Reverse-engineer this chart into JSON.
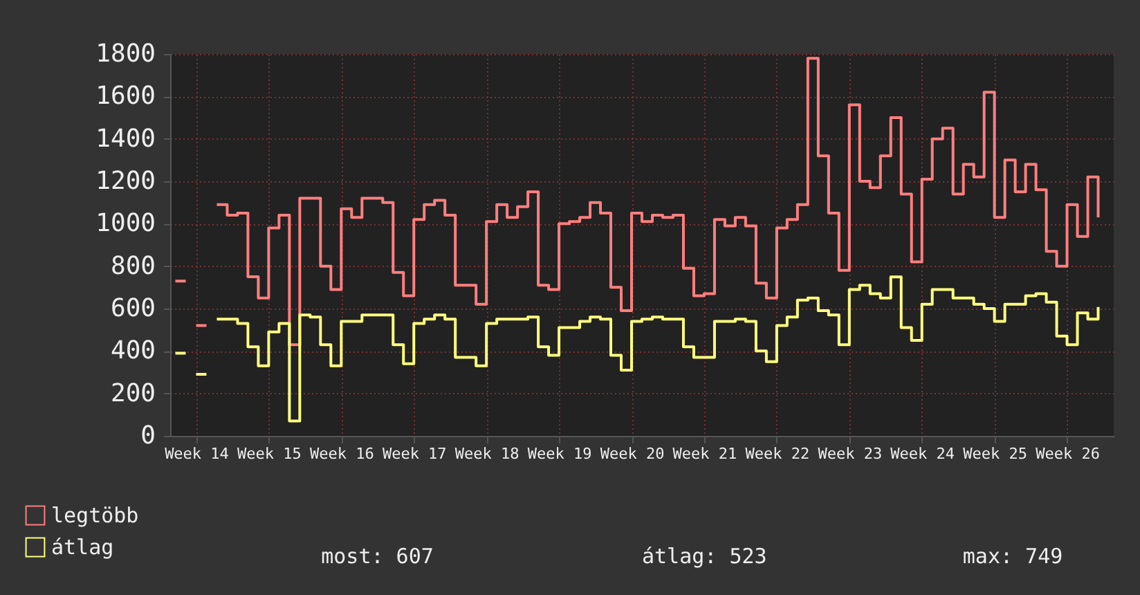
{
  "chart_data": {
    "type": "step",
    "categories": [
      null,
      null,
      "Week 14",
      null,
      null,
      null,
      null,
      null,
      null,
      "Week 15",
      null,
      null,
      null,
      null,
      null,
      null,
      "Week 16",
      null,
      null,
      null,
      null,
      null,
      null,
      "Week 17",
      null,
      null,
      null,
      null,
      null,
      null,
      "Week 18",
      null,
      null,
      null,
      null,
      null,
      null,
      "Week 19",
      null,
      null,
      null,
      null,
      null,
      null,
      "Week 20",
      null,
      null,
      null,
      null,
      null,
      null,
      "Week 21",
      null,
      null,
      null,
      null,
      null,
      null,
      "Week 22",
      null,
      null,
      null,
      null,
      null,
      null,
      "Week 23",
      null,
      null,
      null,
      null,
      null,
      null,
      "Week 24",
      null,
      null,
      null,
      null,
      null,
      null,
      "Week 25",
      null,
      null,
      null,
      null,
      null,
      null,
      "Week 26",
      null,
      null,
      null
    ],
    "series": [
      {
        "name": "legtöbb",
        "color": "#ff7f7f",
        "values": [
          730,
          null,
          520,
          null,
          1090,
          1040,
          1050,
          750,
          650,
          980,
          1040,
          430,
          1120,
          1120,
          800,
          690,
          1070,
          1030,
          1120,
          1120,
          1100,
          770,
          660,
          1020,
          1090,
          1110,
          1040,
          710,
          710,
          620,
          1010,
          1090,
          1030,
          1080,
          1150,
          710,
          690,
          1000,
          1010,
          1030,
          1100,
          1050,
          700,
          590,
          1050,
          1010,
          1040,
          1030,
          1040,
          790,
          660,
          670,
          1020,
          990,
          1030,
          990,
          720,
          650,
          980,
          1020,
          1090,
          1780,
          1320,
          1050,
          780,
          1560,
          1200,
          1170,
          1320,
          1500,
          1140,
          820,
          1210,
          1400,
          1450,
          1140,
          1280,
          1220,
          1620,
          1030,
          1300,
          1150,
          1280,
          1160,
          870,
          800,
          1090,
          940,
          1220,
          1030
        ]
      },
      {
        "name": "átlag",
        "color": "#ffff7f",
        "values": [
          390,
          null,
          290,
          null,
          550,
          550,
          530,
          420,
          330,
          490,
          530,
          70,
          570,
          560,
          430,
          330,
          540,
          540,
          570,
          570,
          570,
          430,
          340,
          530,
          550,
          570,
          550,
          370,
          370,
          330,
          530,
          550,
          550,
          550,
          560,
          420,
          380,
          510,
          510,
          540,
          560,
          550,
          380,
          310,
          540,
          550,
          560,
          550,
          550,
          420,
          370,
          370,
          540,
          540,
          550,
          540,
          400,
          350,
          520,
          560,
          640,
          650,
          590,
          570,
          430,
          690,
          710,
          670,
          650,
          749,
          510,
          450,
          620,
          690,
          690,
          650,
          650,
          620,
          600,
          540,
          620,
          620,
          660,
          670,
          630,
          470,
          430,
          580,
          550,
          607
        ]
      }
    ],
    "ylim": [
      0,
      1800
    ],
    "yticks": [
      0,
      200,
      400,
      600,
      800,
      1000,
      1200,
      1400,
      1600,
      1800
    ],
    "grid": true,
    "legend": "bottom left",
    "line_style": "solid",
    "annotations": [
      "most: 607",
      "átlag: 523",
      "max: 749"
    ]
  }
}
